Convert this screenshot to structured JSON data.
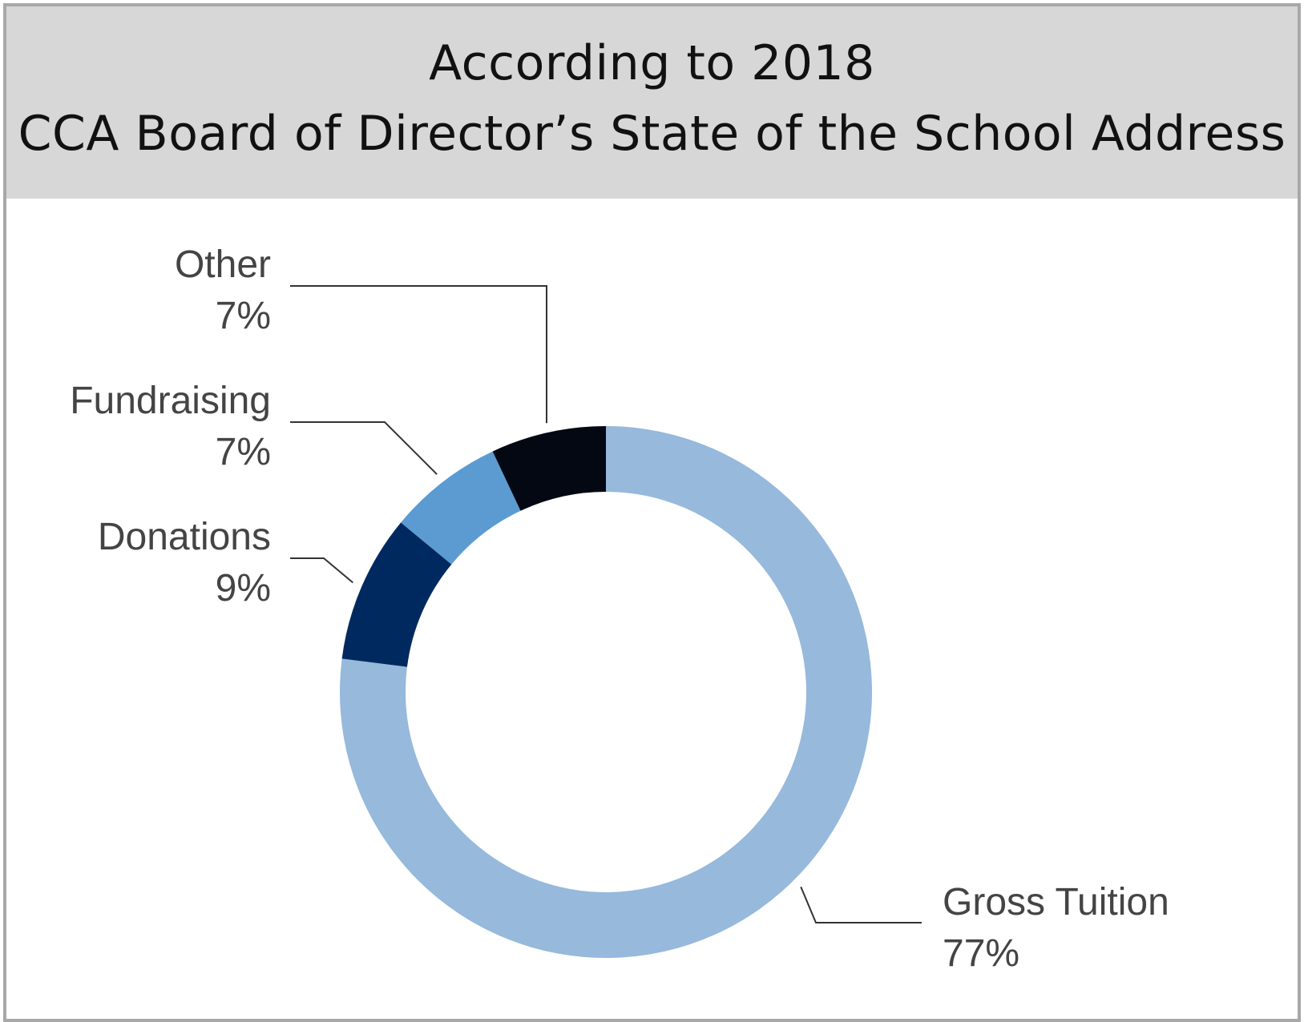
{
  "header": {
    "title_line1": "According to 2018",
    "title_line2": "CCA Board of Director’s State of the School Address"
  },
  "chart_data": {
    "type": "pie",
    "donut": true,
    "title": "According to 2018 CCA Board of Director’s State of the School Address",
    "categories": [
      "Gross Tuition",
      "Donations",
      "Fundraising",
      "Other"
    ],
    "values": [
      77,
      9,
      7,
      7
    ],
    "value_labels": [
      "77%",
      "9%",
      "7%",
      "7%"
    ],
    "colors": [
      "#96b9dc",
      "#002a5f",
      "#5b9bd2",
      "#040812"
    ],
    "grid": false,
    "legend": "none"
  }
}
